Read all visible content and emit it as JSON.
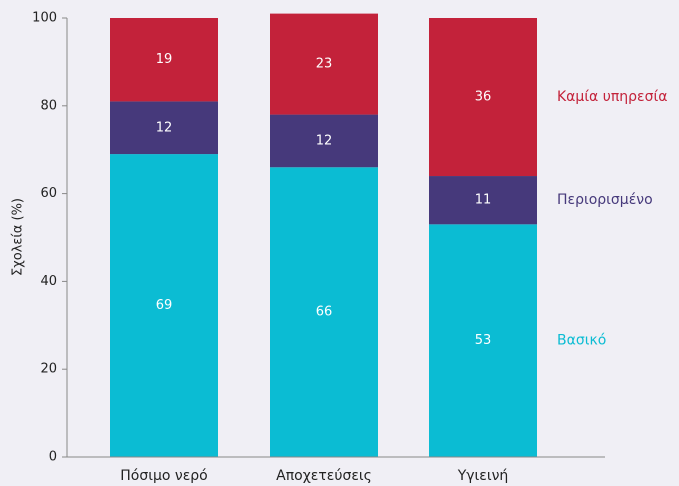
{
  "chart_data": {
    "type": "stacked-bar",
    "y_label": "Σχολεία (%)",
    "categories": [
      "Πόσιμο νερό",
      "Αποχετεύσεις",
      "Υγιεινή"
    ],
    "series": [
      {
        "name": "Βασικό",
        "color": "#0bbcd3",
        "values": [
          69,
          66,
          53
        ]
      },
      {
        "name": "Περιορισμένο",
        "color": "#46397b",
        "values": [
          12,
          12,
          11
        ]
      },
      {
        "name": "Καμία υπηρεσία",
        "color": "#c3223a",
        "values": [
          19,
          23,
          36
        ]
      }
    ],
    "ylim": [
      0,
      100
    ],
    "yticks": [
      0,
      20,
      40,
      60,
      80,
      100
    ]
  }
}
